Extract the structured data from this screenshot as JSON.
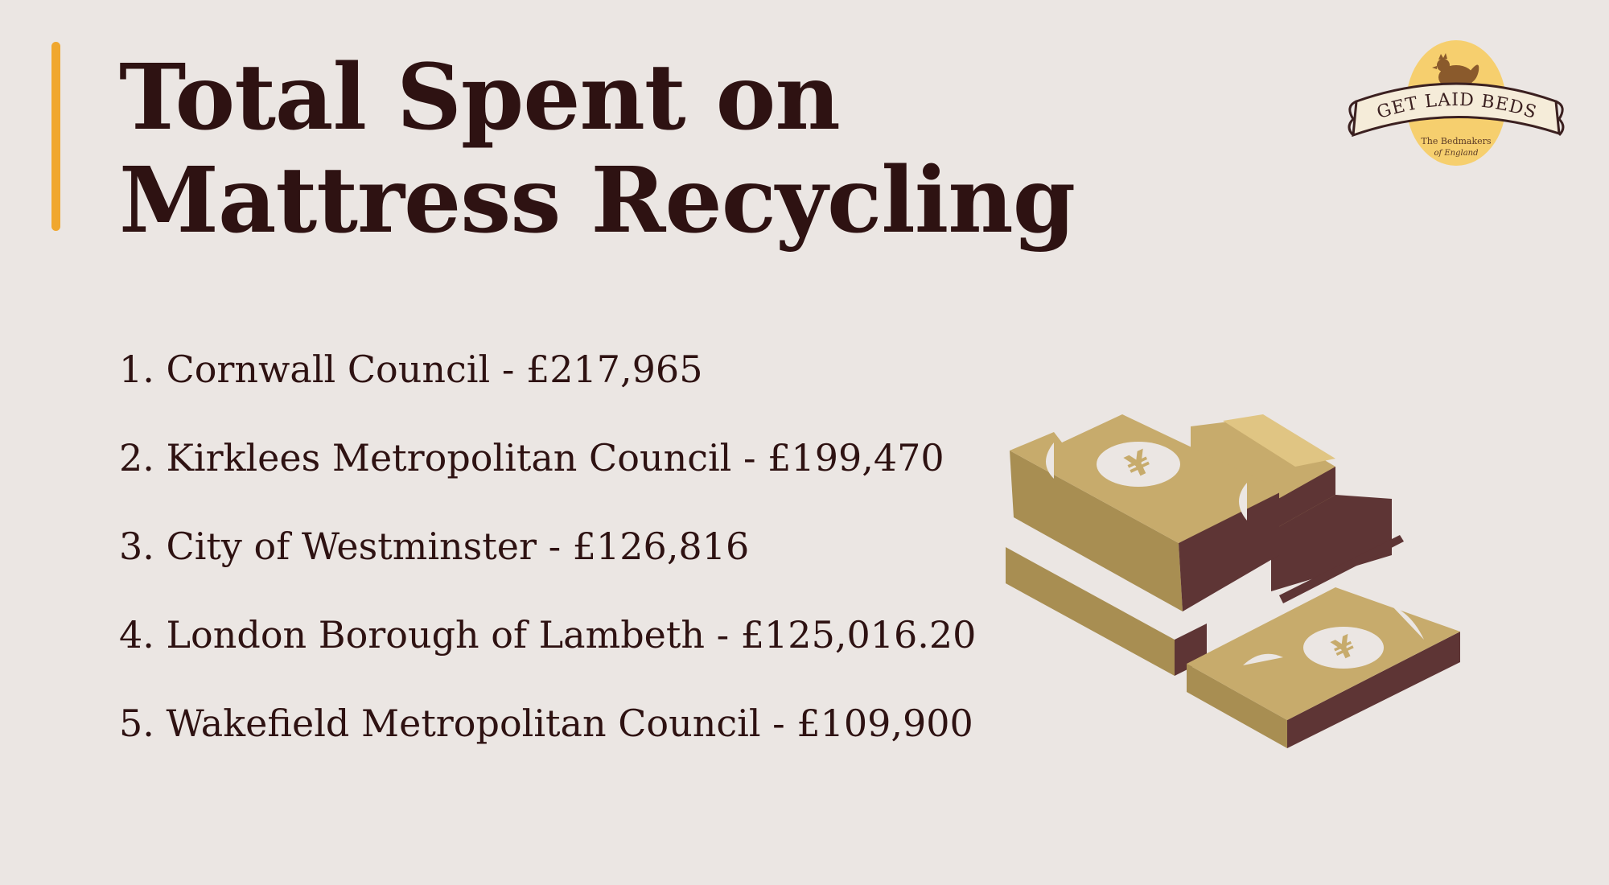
{
  "title": "Total Spent on Mattress Recycling",
  "list": [
    "1.  Cornwall Council - £217,965",
    "2. Kirklees Metropolitan Council - £199,470",
    "3. City of Westminster - £126,816",
    "4. London Borough of Lambeth - £125,016.20",
    "5. Wakefield Metropolitan Council - £109,900"
  ],
  "logo": {
    "brand": "GET LAID BEDS",
    "tagline_line1": "The Bedmakers",
    "tagline_line2": "of England",
    "icon": "hen-icon"
  },
  "illustration": {
    "icon": "money-stack-icon",
    "note_symbol": "¥"
  },
  "colors": {
    "background": "#ebe6e3",
    "accent": "#f0a72e",
    "text": "#2e1212",
    "money_light": "#c7ab6c",
    "money_mid": "#a88e52",
    "money_dark": "#5e3535"
  }
}
